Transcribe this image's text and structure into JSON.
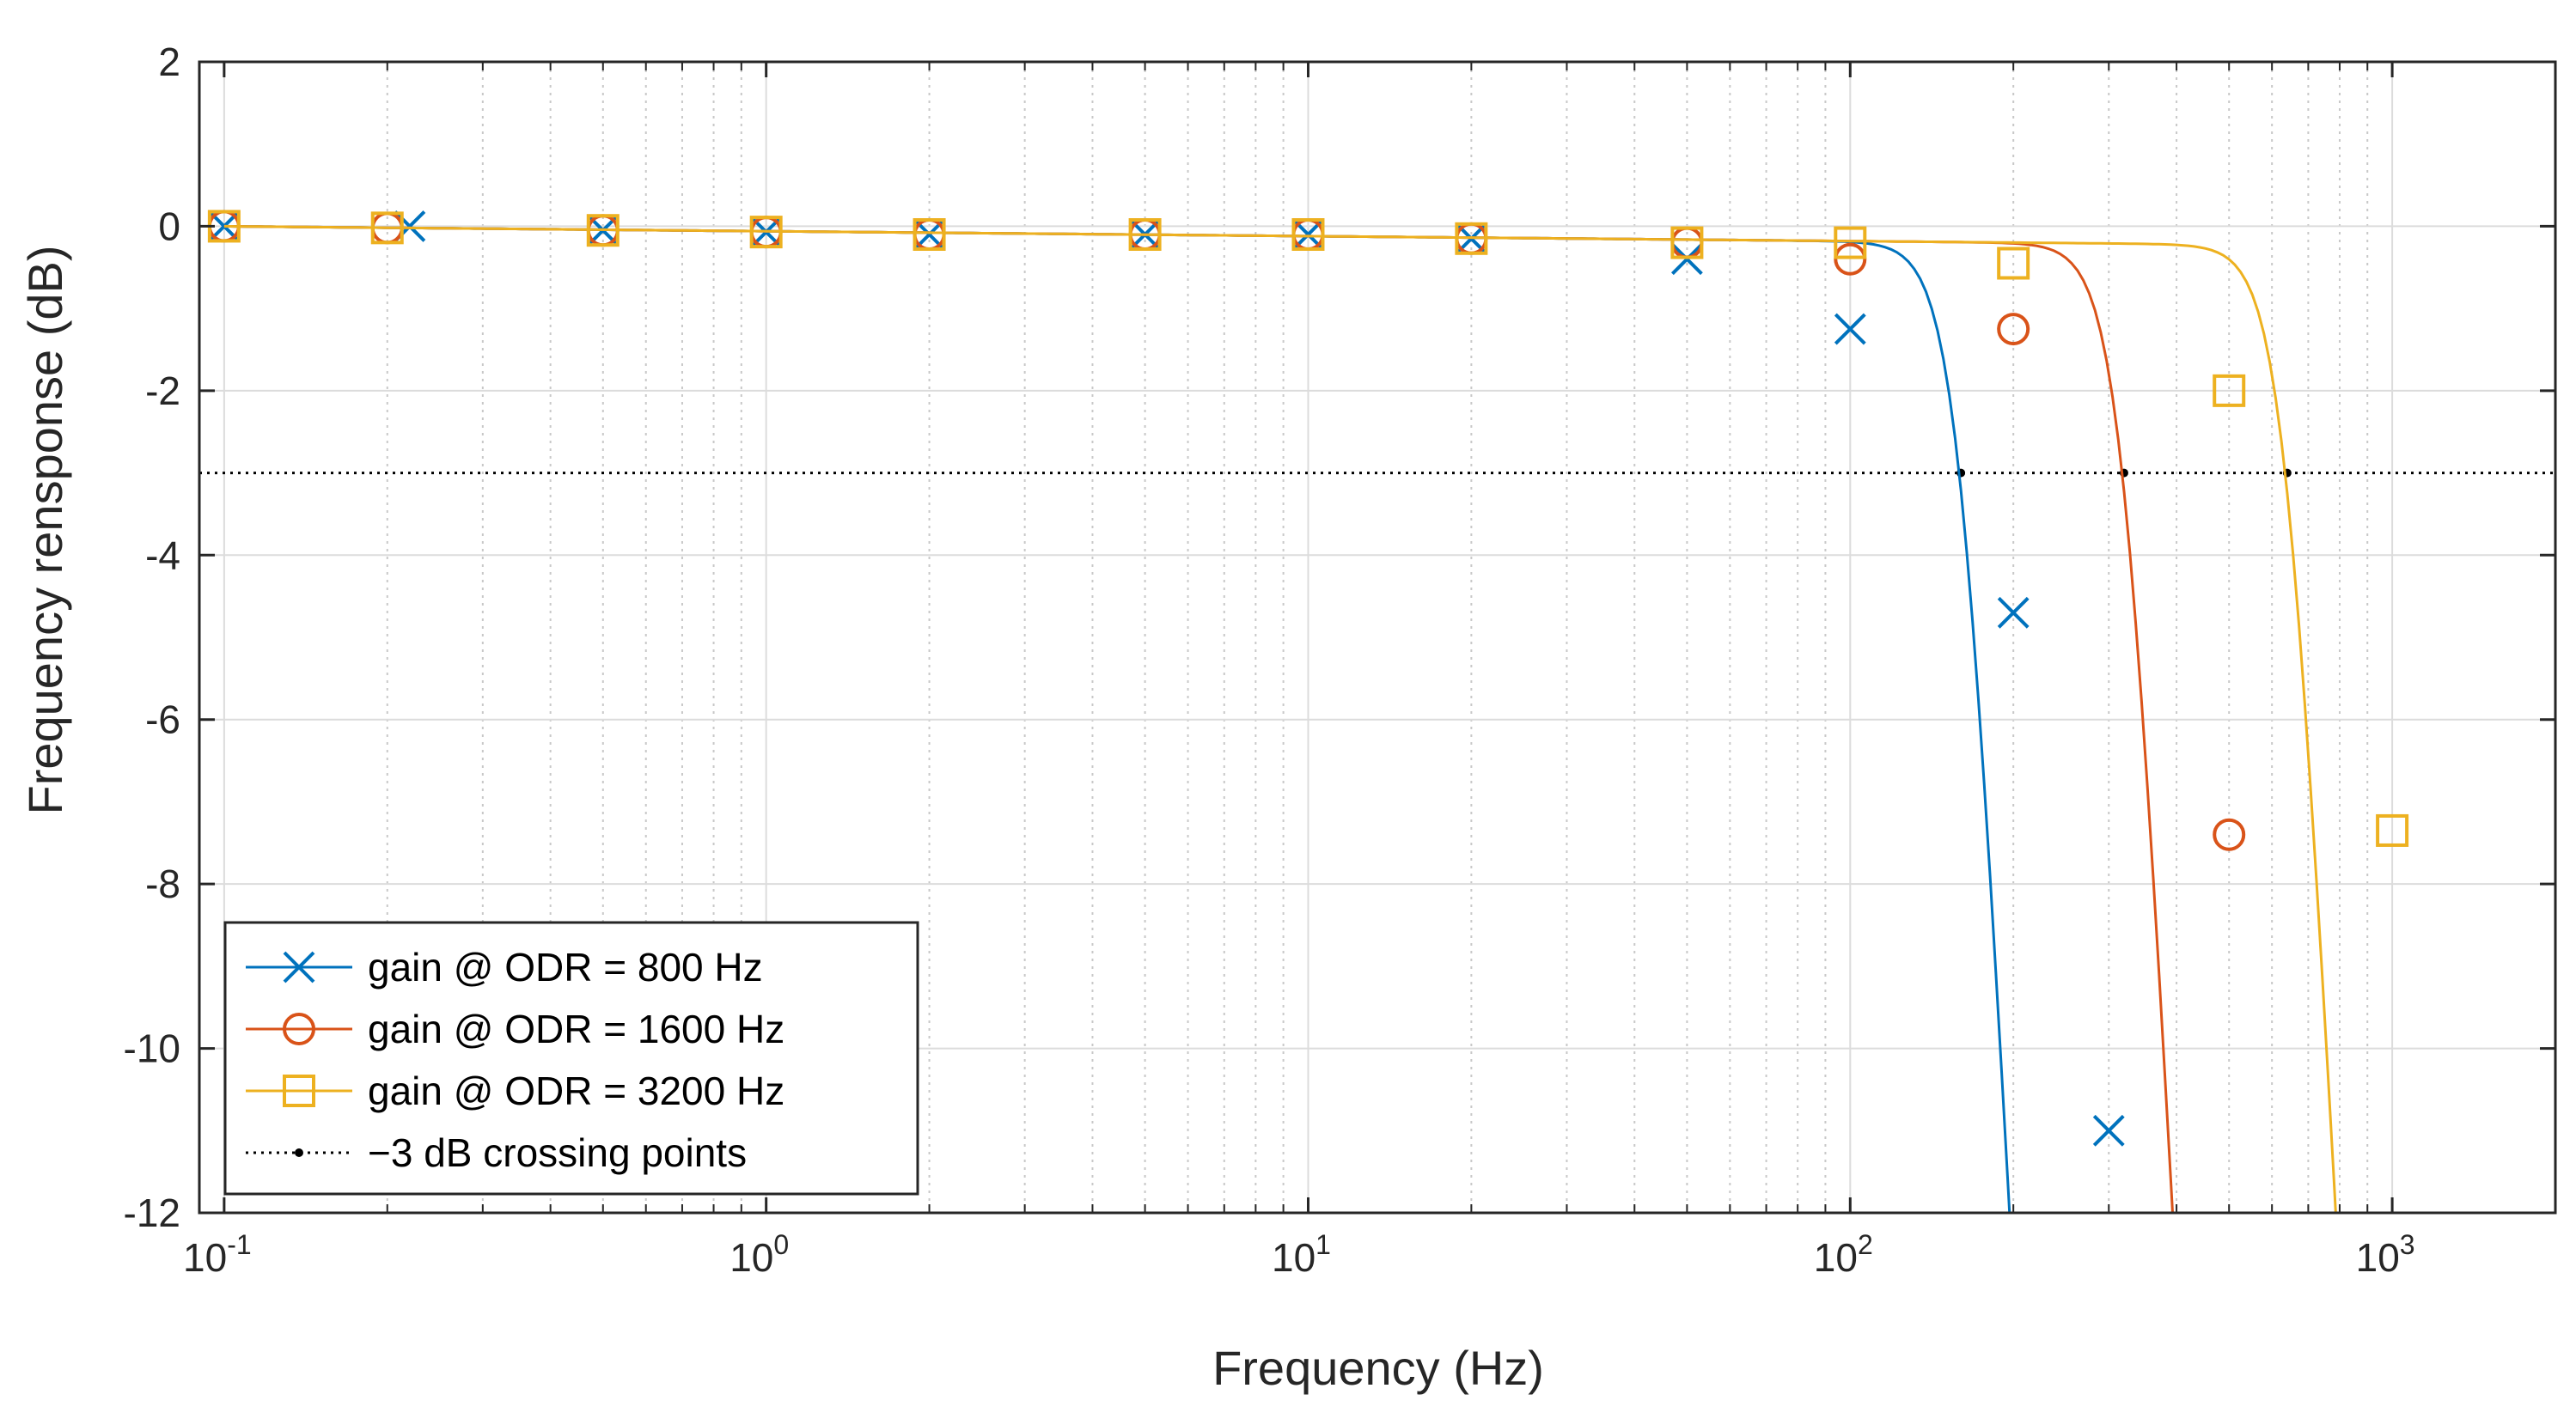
{
  "chart_data": {
    "type": "line",
    "title": "",
    "xlabel": "Frequency (Hz)",
    "ylabel": "Frequency rensponse (dB)",
    "xscale": "log",
    "xlim": [
      0.09,
      2000
    ],
    "ylim": [
      -12,
      2
    ],
    "grid": true,
    "minor_grid_x": true,
    "legend_location": "bottom-left",
    "x_ticks": [
      {
        "value": 0.1,
        "base": "10",
        "exp": "-1"
      },
      {
        "value": 1,
        "base": "10",
        "exp": "0"
      },
      {
        "value": 10,
        "base": "10",
        "exp": "1"
      },
      {
        "value": 100,
        "base": "10",
        "exp": "2"
      },
      {
        "value": 1000,
        "base": "10",
        "exp": "3"
      }
    ],
    "y_ticks": [
      {
        "value": 2,
        "label": "2"
      },
      {
        "value": 0,
        "label": "0"
      },
      {
        "value": -2,
        "label": "-2"
      },
      {
        "value": -4,
        "label": "-4"
      },
      {
        "value": -6,
        "label": "-6"
      },
      {
        "value": -8,
        "label": "-8"
      },
      {
        "value": -10,
        "label": "-10"
      },
      {
        "value": -12,
        "label": "-12"
      }
    ],
    "series": [
      {
        "name": "gain @ ODR = 800 Hz",
        "color": "#0072BD",
        "marker": "x",
        "cutoff_hz": 160,
        "order": 6.4,
        "markers_x": [
          0.1,
          0.22,
          0.5,
          1,
          2,
          5,
          10,
          20,
          50,
          100,
          200,
          300
        ],
        "markers_y": [
          0,
          0,
          -0.05,
          -0.07,
          -0.1,
          -0.1,
          -0.1,
          -0.15,
          -0.4,
          -1.25,
          -4.7,
          -11.0
        ]
      },
      {
        "name": "gain @ ODR = 1600 Hz",
        "color": "#D95319",
        "marker": "o",
        "cutoff_hz": 320,
        "order": 6.4,
        "markers_x": [
          0.1,
          0.2,
          0.5,
          1,
          2,
          5,
          10,
          20,
          50,
          100,
          200,
          500
        ],
        "markers_y": [
          0,
          -0.02,
          -0.05,
          -0.07,
          -0.1,
          -0.1,
          -0.1,
          -0.15,
          -0.2,
          -0.4,
          -1.25,
          -7.4
        ]
      },
      {
        "name": "gain @ ODR = 3200 Hz",
        "color": "#EDB120",
        "marker": "s",
        "cutoff_hz": 640,
        "order": 6.4,
        "markers_x": [
          0.1,
          0.2,
          0.5,
          1,
          2,
          5,
          10,
          20,
          50,
          100,
          200,
          500,
          1000
        ],
        "markers_y": [
          0,
          -0.02,
          -0.05,
          -0.07,
          -0.1,
          -0.1,
          -0.1,
          -0.15,
          -0.2,
          -0.2,
          -0.45,
          -2.0,
          -7.35
        ]
      }
    ],
    "reference_line": {
      "name": "−3 dB crossing points",
      "y": -3,
      "color": "#000000",
      "style": "dotted",
      "crossing_x": [
        160,
        320,
        640
      ]
    }
  }
}
